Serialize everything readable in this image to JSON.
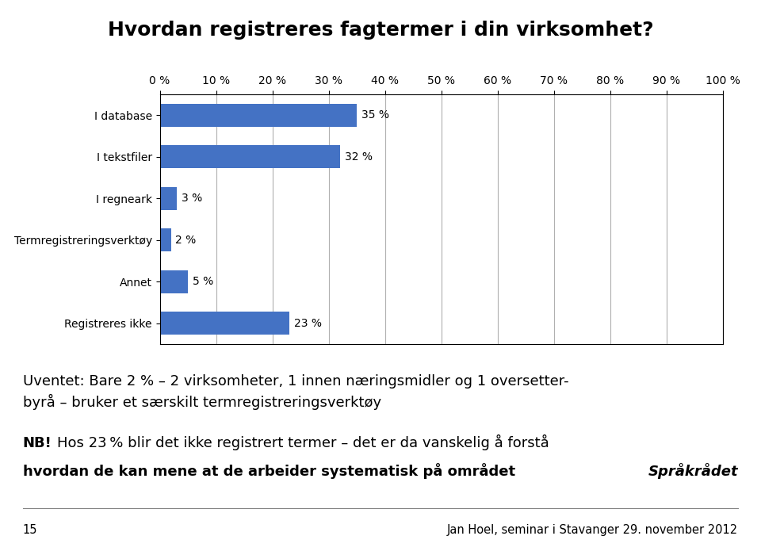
{
  "chart_data": {
    "type": "bar",
    "orientation": "horizontal",
    "title": "Hvordan registreres fagtermer i din virksomhet?",
    "categories": [
      "I database",
      "I tekstfiler",
      "I regneark",
      "Termregistreringsverktøy",
      "Annet",
      "Registreres ikke"
    ],
    "values": [
      35,
      32,
      3,
      2,
      5,
      23
    ],
    "value_labels": [
      "35 %",
      "32 %",
      "3 %",
      "2 %",
      "5 %",
      "23 %"
    ],
    "data_labels": true,
    "color": "#4472C4",
    "xlim": [
      0,
      100
    ],
    "xticks": [
      {
        "value": 0,
        "label": "0 %"
      },
      {
        "value": 10,
        "label": "10 %"
      },
      {
        "value": 20,
        "label": "20 %"
      },
      {
        "value": 30,
        "label": "30 %"
      },
      {
        "value": 40,
        "label": "40 %"
      },
      {
        "value": 50,
        "label": "50 %"
      },
      {
        "value": 60,
        "label": "60 %"
      },
      {
        "value": 70,
        "label": "70 %"
      },
      {
        "value": 80,
        "label": "80 %"
      },
      {
        "value": 90,
        "label": "90 %"
      },
      {
        "value": 100,
        "label": "100 %"
      }
    ],
    "grid": true,
    "annotations": [
      "Uventet: Bare 2 % – 2 virksomheter, 1 innen næringsmidler og 1 oversetter-\nbyrå – bruker et særskilt termregistreringsverktøy",
      "NB!",
      "Hos 23 % blir det ikke registrert termer – det er da vanskelig å forstå",
      "hvordan de kan mene at de arbeider systematisk på området",
      "Språkrådet",
      "15",
      "Jan Hoel, seminar i Stavanger 29. november 2012"
    ]
  }
}
